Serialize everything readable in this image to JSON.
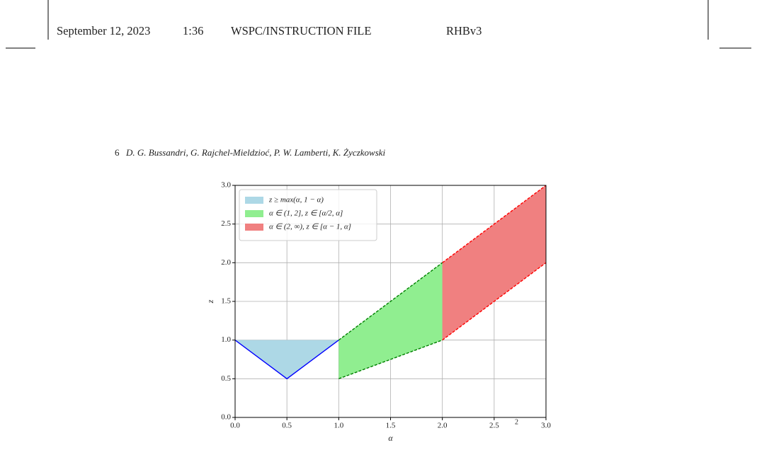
{
  "header": {
    "date": "September 12, 2023",
    "time": "1:36",
    "file": "WSPC/INSTRUCTION FILE",
    "id": "RHBv3"
  },
  "running_head": {
    "page": "6",
    "authors": "D. G. Bussandri, G. Rajchel-Mieldzioć, P. W. Lamberti, K. Życzkowski"
  },
  "caption_fragment": "2",
  "chart_data": {
    "type": "area",
    "x_label": "α",
    "y_label": "z",
    "xlim": [
      0,
      3
    ],
    "ylim": [
      0,
      3
    ],
    "xticks": [
      {
        "value": 0,
        "label": "0.0"
      },
      0.5,
      {
        "value": 1,
        "label": "1.0"
      },
      1.5,
      {
        "value": 2,
        "label": "2.0"
      },
      2.5,
      {
        "value": 3,
        "label": "3.0"
      }
    ],
    "yticks": [
      {
        "value": 0,
        "label": "0.0"
      },
      0.5,
      {
        "value": 1,
        "label": "1.0"
      },
      1.5,
      {
        "value": 2,
        "label": "2.0"
      },
      2.5,
      {
        "value": 3,
        "label": "3.0"
      }
    ],
    "grid": true,
    "legend": "upper left",
    "series": [
      {
        "name": "z ≥ max(α, 1 − α)",
        "color": "#add8e6",
        "edge_color": "#0000ff",
        "edge_style": "solid",
        "edges": [
          "lower"
        ],
        "x": [
          0,
          0.5,
          1
        ],
        "lower": [
          1,
          0.5,
          1
        ],
        "upper": [
          1,
          1,
          1
        ]
      },
      {
        "name": "α ∈ (1, 2], z ∈ [α/2, α]",
        "color": "#90ee90",
        "edge_color": "#008000",
        "edge_style": "dashed",
        "edges": [
          "lower",
          "upper"
        ],
        "x": [
          1,
          2
        ],
        "lower": [
          0.5,
          1
        ],
        "upper": [
          1,
          2
        ]
      },
      {
        "name": "α ∈ (2, ∞), z ∈ [α − 1, α]",
        "color": "#f08080",
        "edge_color": "#ff0000",
        "edge_style": "dashed",
        "edges": [
          "lower",
          "upper"
        ],
        "x": [
          2,
          3
        ],
        "lower": [
          1,
          2
        ],
        "upper": [
          2,
          3
        ]
      }
    ]
  }
}
